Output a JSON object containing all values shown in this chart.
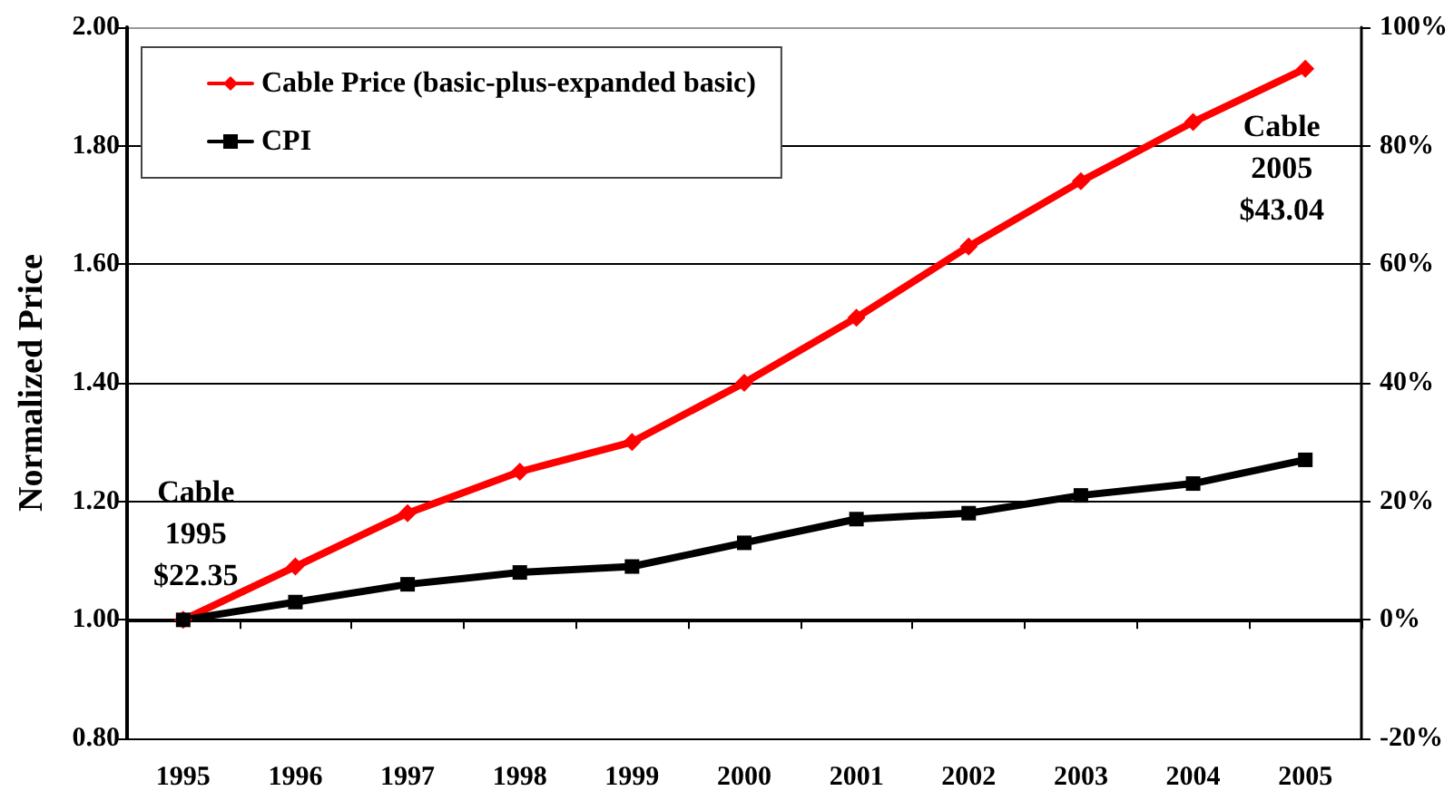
{
  "chart_data": {
    "type": "line",
    "ylabel": "Normalized Price",
    "categories": [
      "1995",
      "1996",
      "1997",
      "1998",
      "1999",
      "2000",
      "2001",
      "2002",
      "2003",
      "2004",
      "2005"
    ],
    "series": [
      {
        "name": "Cable Price (basic-plus-expanded basic)",
        "color": "#ff0000",
        "marker": "diamond",
        "values": [
          1.0,
          1.09,
          1.18,
          1.25,
          1.3,
          1.4,
          1.51,
          1.63,
          1.74,
          1.84,
          1.93
        ]
      },
      {
        "name": "CPI",
        "color": "#000000",
        "marker": "square",
        "values": [
          1.0,
          1.03,
          1.06,
          1.08,
          1.09,
          1.13,
          1.17,
          1.18,
          1.21,
          1.23,
          1.27
        ]
      }
    ],
    "ylim": [
      0.8,
      2.0
    ],
    "yticks": [
      {
        "value": 0.8,
        "label": "0.80"
      },
      {
        "value": 1.0,
        "label": "1.00"
      },
      {
        "value": 1.2,
        "label": "1.20"
      },
      {
        "value": 1.4,
        "label": "1.40"
      },
      {
        "value": 1.6,
        "label": "1.60"
      },
      {
        "value": 1.8,
        "label": "1.80"
      },
      {
        "value": 2.0,
        "label": "2.00"
      }
    ],
    "y2lim": [
      -20,
      100
    ],
    "y2ticks": [
      {
        "value": -20,
        "label": "-20%"
      },
      {
        "value": 0,
        "label": "0%"
      },
      {
        "value": 20,
        "label": "20%"
      },
      {
        "value": 40,
        "label": "40%"
      },
      {
        "value": 60,
        "label": "60%"
      },
      {
        "value": 80,
        "label": "80%"
      },
      {
        "value": 100,
        "label": "100%"
      }
    ],
    "grid": "y",
    "legend": "top left",
    "annotations": [
      {
        "text": "Cable\n1995\n$22.35",
        "x": "1995",
        "y": 1.0
      },
      {
        "text": "Cable\n2005\n$43.04",
        "x": "2005",
        "y": 1.93
      }
    ]
  }
}
